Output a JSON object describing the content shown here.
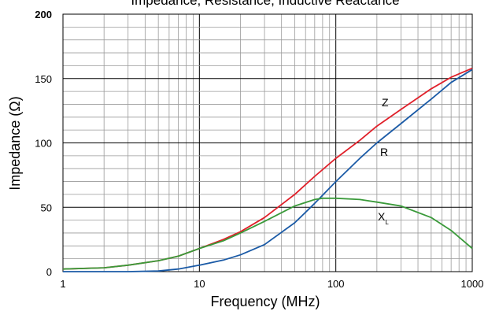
{
  "chart_data": {
    "type": "line",
    "title": "Impedance, Resistance, Inductive Reactance",
    "xlabel": "Frequency (MHz)",
    "ylabel": "Impedance (Ω)",
    "x_scale": "log",
    "xlim": [
      1,
      1000
    ],
    "ylim": [
      0,
      200
    ],
    "x_ticks": [
      "1",
      "10",
      "100",
      "1000"
    ],
    "y_ticks": [
      "0",
      "50",
      "100",
      "150",
      "200"
    ],
    "grid": true,
    "series": [
      {
        "name": "Z",
        "color": "#e0202a",
        "x": [
          1,
          2,
          3,
          5,
          7,
          10,
          15,
          20,
          30,
          50,
          70,
          100,
          150,
          200,
          300,
          500,
          700,
          1000
        ],
        "y": [
          2,
          3,
          5,
          8.5,
          12,
          18,
          25,
          31,
          42,
          60,
          74,
          88,
          102,
          113,
          126,
          142,
          151,
          158
        ]
      },
      {
        "name": "R",
        "color": "#1a5aa6",
        "x": [
          1,
          3,
          5,
          7,
          10,
          15,
          20,
          30,
          50,
          70,
          100,
          150,
          200,
          300,
          500,
          700,
          1000
        ],
        "y": [
          0,
          0,
          0.5,
          2,
          5,
          9,
          13,
          21,
          38,
          53,
          70,
          88,
          100,
          115,
          134,
          147,
          157
        ]
      },
      {
        "name": "X",
        "subscript": "L",
        "color": "#3a9a3a",
        "x": [
          1,
          2,
          3,
          5,
          7,
          10,
          15,
          20,
          30,
          50,
          70,
          80,
          100,
          150,
          200,
          300,
          500,
          700,
          1000
        ],
        "y": [
          2,
          3,
          5,
          8.5,
          12,
          18,
          24,
          30,
          39,
          51,
          56,
          57,
          57,
          56,
          54,
          51,
          42,
          32,
          18
        ]
      }
    ]
  }
}
